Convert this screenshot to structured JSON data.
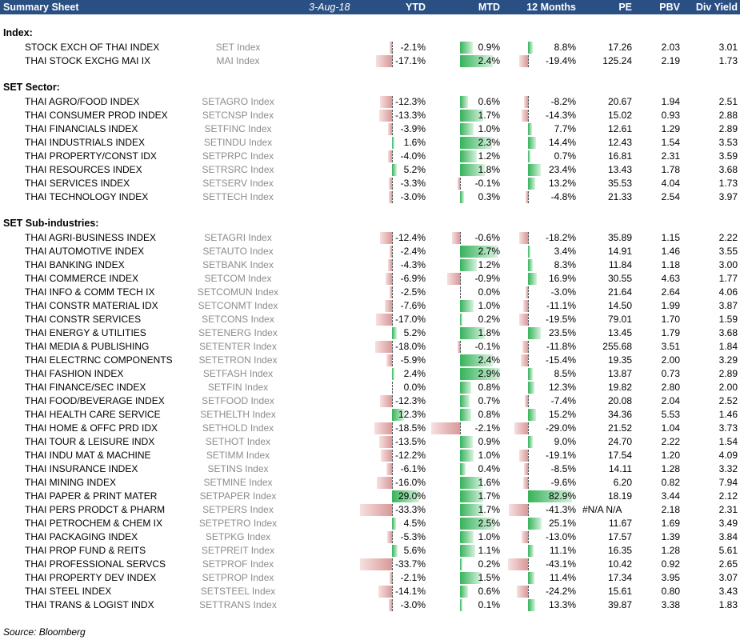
{
  "header": {
    "title": "Summary Sheet",
    "date": "3-Aug-18",
    "col_ytd": "YTD",
    "col_mtd": "MTD",
    "col_12m": "12 Months",
    "col_pe": "PE",
    "col_pbv": "PBV",
    "col_dy": "Div Yield"
  },
  "colors": {
    "header_bg": "#2a4f82",
    "positive_bar": "#35b35a",
    "negative_bar": "#d99898",
    "ticker_text": "#8c8c8c"
  },
  "sections": [
    {
      "title": "Index:",
      "rows": [
        {
          "name": "STOCK EXCH OF THAI INDEX",
          "ticker": "SET Index",
          "ytd": -2.1,
          "mtd": 0.9,
          "m12": 8.8,
          "pe": "17.26",
          "pbv": "2.03",
          "dy": "3.01"
        },
        {
          "name": "THAI STOCK EXCHG MAI IX",
          "ticker": "MAI Index",
          "ytd": -17.1,
          "mtd": 2.4,
          "m12": -19.4,
          "pe": "125.24",
          "pbv": "2.19",
          "dy": "1.73"
        }
      ]
    },
    {
      "title": "SET Sector:",
      "rows": [
        {
          "name": "THAI AGRO/FOOD INDEX",
          "ticker": "SETAGRO Index",
          "ytd": -12.3,
          "mtd": 0.6,
          "m12": -8.2,
          "pe": "20.67",
          "pbv": "1.94",
          "dy": "2.51"
        },
        {
          "name": "THAI CONSUMER PROD INDEX",
          "ticker": "SETCNSP Index",
          "ytd": -13.3,
          "mtd": 1.7,
          "m12": -14.3,
          "pe": "15.02",
          "pbv": "0.93",
          "dy": "2.88"
        },
        {
          "name": "THAI FINANCIALS INDEX",
          "ticker": "SETFINC Index",
          "ytd": -3.9,
          "mtd": 1.0,
          "m12": 7.7,
          "pe": "12.61",
          "pbv": "1.29",
          "dy": "2.89"
        },
        {
          "name": "THAI INDUSTRIALS INDEX",
          "ticker": "SETINDU Index",
          "ytd": 1.6,
          "mtd": 2.3,
          "m12": 14.4,
          "pe": "12.43",
          "pbv": "1.54",
          "dy": "3.53"
        },
        {
          "name": "THAI PROPERTY/CONST IDX",
          "ticker": "SETPRPC Index",
          "ytd": -4.0,
          "mtd": 1.2,
          "m12": 0.7,
          "pe": "16.81",
          "pbv": "2.31",
          "dy": "3.59"
        },
        {
          "name": "THAI RESOURCES INDEX",
          "ticker": "SETRSRC Index",
          "ytd": 5.2,
          "mtd": 1.8,
          "m12": 23.4,
          "pe": "13.43",
          "pbv": "1.78",
          "dy": "3.68"
        },
        {
          "name": "THAI SERVICES INDEX",
          "ticker": "SETSERV Index",
          "ytd": -3.3,
          "mtd": -0.1,
          "m12": 13.2,
          "pe": "35.53",
          "pbv": "4.04",
          "dy": "1.73"
        },
        {
          "name": "THAI TECHNOLOGY INDEX",
          "ticker": "SETTECH Index",
          "ytd": -3.0,
          "mtd": 0.3,
          "m12": -4.8,
          "pe": "21.33",
          "pbv": "2.54",
          "dy": "3.97"
        }
      ]
    },
    {
      "title": "SET Sub-industries:",
      "rows": [
        {
          "name": "THAI AGRI-BUSINESS INDEX",
          "ticker": "SETAGRI Index",
          "ytd": -12.4,
          "mtd": -0.6,
          "m12": -18.2,
          "pe": "35.89",
          "pbv": "1.15",
          "dy": "2.22"
        },
        {
          "name": "THAI AUTOMOTIVE INDEX",
          "ticker": "SETAUTO Index",
          "ytd": -2.4,
          "mtd": 2.7,
          "m12": 3.4,
          "pe": "14.91",
          "pbv": "1.46",
          "dy": "3.55"
        },
        {
          "name": "THAI BANKING INDEX",
          "ticker": "SETBANK Index",
          "ytd": -4.3,
          "mtd": 1.2,
          "m12": 8.3,
          "pe": "11.84",
          "pbv": "1.18",
          "dy": "3.00"
        },
        {
          "name": "THAI COMMERCE INDEX",
          "ticker": "SETCOM Index",
          "ytd": -6.9,
          "mtd": -0.9,
          "m12": 16.9,
          "pe": "30.55",
          "pbv": "4.63",
          "dy": "1.77"
        },
        {
          "name": "THAI INFO & COMM TECH IX",
          "ticker": "SETCOMUN Index",
          "ytd": -2.5,
          "mtd": 0.0,
          "m12": -3.0,
          "pe": "21.64",
          "pbv": "2.64",
          "dy": "4.06"
        },
        {
          "name": "THAI CONSTR MATERIAL IDX",
          "ticker": "SETCONMT Index",
          "ytd": -7.6,
          "mtd": 1.0,
          "m12": -11.1,
          "pe": "14.50",
          "pbv": "1.99",
          "dy": "3.87"
        },
        {
          "name": "THAI CONSTR SERVICES",
          "ticker": "SETCONS Index",
          "ytd": -17.0,
          "mtd": 0.2,
          "m12": -19.5,
          "pe": "79.01",
          "pbv": "1.70",
          "dy": "1.59"
        },
        {
          "name": "THAI ENERGY & UTILITIES",
          "ticker": "SETENERG Index",
          "ytd": 5.2,
          "mtd": 1.8,
          "m12": 23.5,
          "pe": "13.45",
          "pbv": "1.79",
          "dy": "3.68"
        },
        {
          "name": "THAI MEDIA & PUBLISHING",
          "ticker": "SETENTER Index",
          "ytd": -18.0,
          "mtd": -0.1,
          "m12": -11.8,
          "pe": "255.68",
          "pbv": "3.51",
          "dy": "1.84"
        },
        {
          "name": "THAI ELECTRNC COMPONENTS",
          "ticker": "SETETRON Index",
          "ytd": -5.9,
          "mtd": 2.4,
          "m12": -15.4,
          "pe": "19.35",
          "pbv": "2.00",
          "dy": "3.29"
        },
        {
          "name": "THAI FASHION INDEX",
          "ticker": "SETFASH Index",
          "ytd": 2.4,
          "mtd": 2.9,
          "m12": 8.5,
          "pe": "13.87",
          "pbv": "0.73",
          "dy": "2.89"
        },
        {
          "name": "THAI FINANCE/SEC INDEX",
          "ticker": "SETFIN Index",
          "ytd": 0.0,
          "mtd": 0.8,
          "m12": 12.3,
          "pe": "19.82",
          "pbv": "2.80",
          "dy": "2.00"
        },
        {
          "name": "THAI FOOD/BEVERAGE INDEX",
          "ticker": "SETFOOD Index",
          "ytd": -12.3,
          "mtd": 0.7,
          "m12": -7.4,
          "pe": "20.08",
          "pbv": "2.04",
          "dy": "2.52"
        },
        {
          "name": "THAI HEALTH CARE SERVICE",
          "ticker": "SETHELTH Index",
          "ytd": 12.3,
          "mtd": 0.8,
          "m12": 15.2,
          "pe": "34.36",
          "pbv": "5.53",
          "dy": "1.46"
        },
        {
          "name": "THAI HOME & OFFC PRD IDX",
          "ticker": "SETHOLD Index",
          "ytd": -18.5,
          "mtd": -2.1,
          "m12": -29.0,
          "pe": "21.52",
          "pbv": "1.04",
          "dy": "3.73"
        },
        {
          "name": "THAI TOUR & LEISURE INDX",
          "ticker": "SETHOT Index",
          "ytd": -13.5,
          "mtd": 0.9,
          "m12": 9.0,
          "pe": "24.70",
          "pbv": "2.22",
          "dy": "1.54"
        },
        {
          "name": "THAI INDU MAT & MACHINE",
          "ticker": "SETIMM Index",
          "ytd": -12.2,
          "mtd": 1.0,
          "m12": -19.1,
          "pe": "17.54",
          "pbv": "1.20",
          "dy": "4.09"
        },
        {
          "name": "THAI INSURANCE INDEX",
          "ticker": "SETINS Index",
          "ytd": -6.1,
          "mtd": 0.4,
          "m12": -8.5,
          "pe": "14.11",
          "pbv": "1.28",
          "dy": "3.32"
        },
        {
          "name": "THAI MINING INDEX",
          "ticker": "SETMINE Index",
          "ytd": -16.0,
          "mtd": 1.6,
          "m12": -9.6,
          "pe": "6.20",
          "pbv": "0.82",
          "dy": "7.94"
        },
        {
          "name": "THAI PAPER & PRINT MATER",
          "ticker": "SETPAPER Index",
          "ytd": 29.0,
          "mtd": 1.7,
          "m12": 82.9,
          "pe": "18.19",
          "pbv": "3.44",
          "dy": "2.12"
        },
        {
          "name": "THAI PERS PRODCT & PHARM",
          "ticker": "SETPERS Index",
          "ytd": -33.3,
          "mtd": 1.7,
          "m12": -41.3,
          "pe": "#N/A N/A",
          "pbv": "2.18",
          "dy": "2.31"
        },
        {
          "name": "THAI PETROCHEM & CHEM IX",
          "ticker": "SETPETRO Index",
          "ytd": 4.5,
          "mtd": 2.5,
          "m12": 25.1,
          "pe": "11.67",
          "pbv": "1.69",
          "dy": "3.49"
        },
        {
          "name": "THAI PACKAGING INDEX",
          "ticker": "SETPKG Index",
          "ytd": -5.3,
          "mtd": 1.0,
          "m12": -13.0,
          "pe": "17.57",
          "pbv": "1.39",
          "dy": "3.84"
        },
        {
          "name": "THAI PROP FUND & REITS",
          "ticker": "SETPREIT Index",
          "ytd": 5.6,
          "mtd": 1.1,
          "m12": 11.1,
          "pe": "16.35",
          "pbv": "1.28",
          "dy": "5.61"
        },
        {
          "name": "THAI PROFESSIONAL SERVCS",
          "ticker": "SETPROF Index",
          "ytd": -33.7,
          "mtd": 0.2,
          "m12": -43.1,
          "pe": "10.42",
          "pbv": "0.92",
          "dy": "2.65"
        },
        {
          "name": "THAI PROPERTY DEV INDEX",
          "ticker": "SETPROP Index",
          "ytd": -2.1,
          "mtd": 1.5,
          "m12": 11.4,
          "pe": "17.34",
          "pbv": "3.95",
          "dy": "3.07"
        },
        {
          "name": "THAI STEEL INDEX",
          "ticker": "SETSTEEL Index",
          "ytd": -14.1,
          "mtd": 0.6,
          "m12": -24.2,
          "pe": "15.61",
          "pbv": "0.80",
          "dy": "3.43"
        },
        {
          "name": "THAI TRANS & LOGIST INDX",
          "ticker": "SETTRANS Index",
          "ytd": -3.0,
          "mtd": 0.1,
          "m12": 13.3,
          "pe": "39.87",
          "pbv": "3.38",
          "dy": "1.83"
        }
      ]
    }
  ],
  "source": "Source: Bloomberg"
}
